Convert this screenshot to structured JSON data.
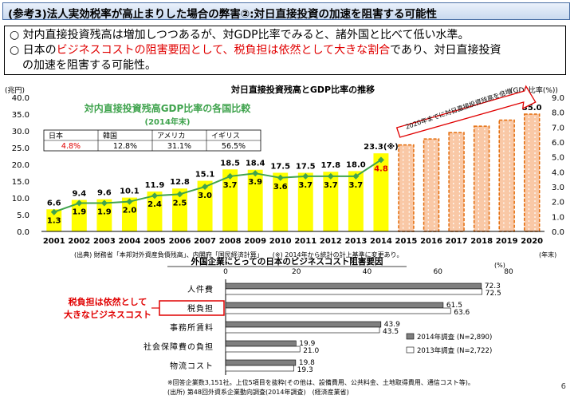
{
  "header": {
    "title": "(参考3)法人実効税率が高止まりした場合の弊害②:対日直接投資の加速を阻害する可能性"
  },
  "summary": {
    "bullet1": "○ 対内直接投資残高は増加しつつあるが、対GDP比率でみると、諸外国と比べて低い水準。",
    "bullet2_a": "○ 日本の",
    "bullet2_red": "ビジネスコストの阻害要因として、税負担は依然として大きな割合",
    "bullet2_b": "であり、対日直接投資",
    "bullet2_c": "の加速を阻害する可能性。"
  },
  "chart_data": [
    {
      "type": "bar",
      "title": "対日直接投資残高とGDP比率の推移",
      "ylabel": "(兆円)",
      "y2label": "(GDP比率(%))",
      "xunit": "(年末)",
      "ylim": [
        0,
        40
      ],
      "y2lim": [
        0,
        9
      ],
      "yticks": [
        "0.0",
        "5.0",
        "10.0",
        "15.0",
        "20.0",
        "25.0",
        "30.0",
        "35.0",
        "40.0"
      ],
      "y2ticks": [
        "0.0",
        "1.0",
        "2.0",
        "3.0",
        "4.0",
        "5.0",
        "6.0",
        "7.0",
        "8.0",
        "9.0"
      ],
      "categories": [
        "2001",
        "2002",
        "2003",
        "2004",
        "2005",
        "2006",
        "2007",
        "2008",
        "2009",
        "2010",
        "2011",
        "2012",
        "2013",
        "2014",
        "2015",
        "2016",
        "2017",
        "2018",
        "2019",
        "2020"
      ],
      "bar_values": [
        6.6,
        9.4,
        9.6,
        10.1,
        11.9,
        12.8,
        15.1,
        18.5,
        18.4,
        17.5,
        17.5,
        17.8,
        18.0,
        23.3,
        25.8,
        27.6,
        29.5,
        31.4,
        33.2,
        35.0
      ],
      "bar_labels": [
        "6.6",
        "9.4",
        "9.6",
        "10.1",
        "11.9",
        "12.8",
        "15.1",
        "18.5",
        "18.4",
        "17.5",
        "17.5",
        "17.8",
        "18.0",
        "23.3(※)",
        "",
        "",
        "",
        "",
        "",
        "35.0"
      ],
      "gdp_ratio": [
        1.3,
        1.9,
        1.9,
        2.0,
        2.4,
        2.5,
        3.0,
        3.7,
        3.9,
        3.6,
        3.7,
        3.7,
        3.7,
        4.8
      ],
      "gdp_labels": [
        "1.3",
        "1.9",
        "1.9",
        "2.0",
        "2.4",
        "2.5",
        "3.0",
        "3.7",
        "3.9",
        "3.6",
        "3.7",
        "3.7",
        "3.7",
        "4.8"
      ],
      "target_text": "2020年までに対日直接投資残高を倍増",
      "colors": {
        "bar": "#ffff00",
        "target_bar": "#f9c8a6",
        "target_border": "#e46c0a",
        "line": "#3fa34d",
        "highlight": "#e00000"
      },
      "comparison": {
        "title": "対内直接投資残高GDP比率の各国比較",
        "subtitle": "(2014年末)",
        "countries": [
          "日本",
          "韓国",
          "アメリカ",
          "イギリス"
        ],
        "values": [
          "4.8%",
          "12.8%",
          "31.1%",
          "56.5%"
        ],
        "ratios": [
          4.8,
          12.8,
          31.1,
          56.5
        ]
      },
      "source": "(出典) 財務省「本邦対外資産負債残高」、内閣府「国民経済計算」　　(※) 2014年から統計の計上基準に変更あり。"
    },
    {
      "type": "bar",
      "orientation": "horizontal",
      "title": "外国企業にとっての日本のビジネスコスト阻害要因",
      "unit": "(%)",
      "xlim": [
        0,
        80
      ],
      "xticks": [
        "0",
        "20",
        "40",
        "60",
        "80"
      ],
      "categories": [
        "人件費",
        "税負担",
        "事務所賃料",
        "社会保障費の負担",
        "物流コスト"
      ],
      "series": [
        {
          "name": "2014年調査 (N=2,890)",
          "values": [
            72.3,
            61.5,
            43.9,
            19.9,
            19.8
          ]
        },
        {
          "name": "2013年調査 (N=2,722)",
          "values": [
            72.5,
            63.6,
            43.5,
            21.0,
            19.3
          ]
        }
      ],
      "value_labels_2014": [
        "72.3",
        "61.5",
        "43.9",
        "19.9",
        "19.8"
      ],
      "value_labels_2013": [
        "72.5",
        "63.6",
        "43.5",
        "21.0",
        "19.3"
      ],
      "callout_line1": "税負担は依然として",
      "callout_line2": "大きなビジネスコスト",
      "note": "※回答企業数3,151社。上位5項目を抜粋(その他は、設備費用、公共料金、土地取得費用、通信コスト等)。",
      "source": "(出所) 第48回外資系企業動向調査(2014年調査)　(経済産業省)",
      "colors": {
        "s2014": "#7f7f7f",
        "s2013": "#ffffff",
        "callout": "#e00000"
      }
    }
  ],
  "page": {
    "number": "6"
  }
}
